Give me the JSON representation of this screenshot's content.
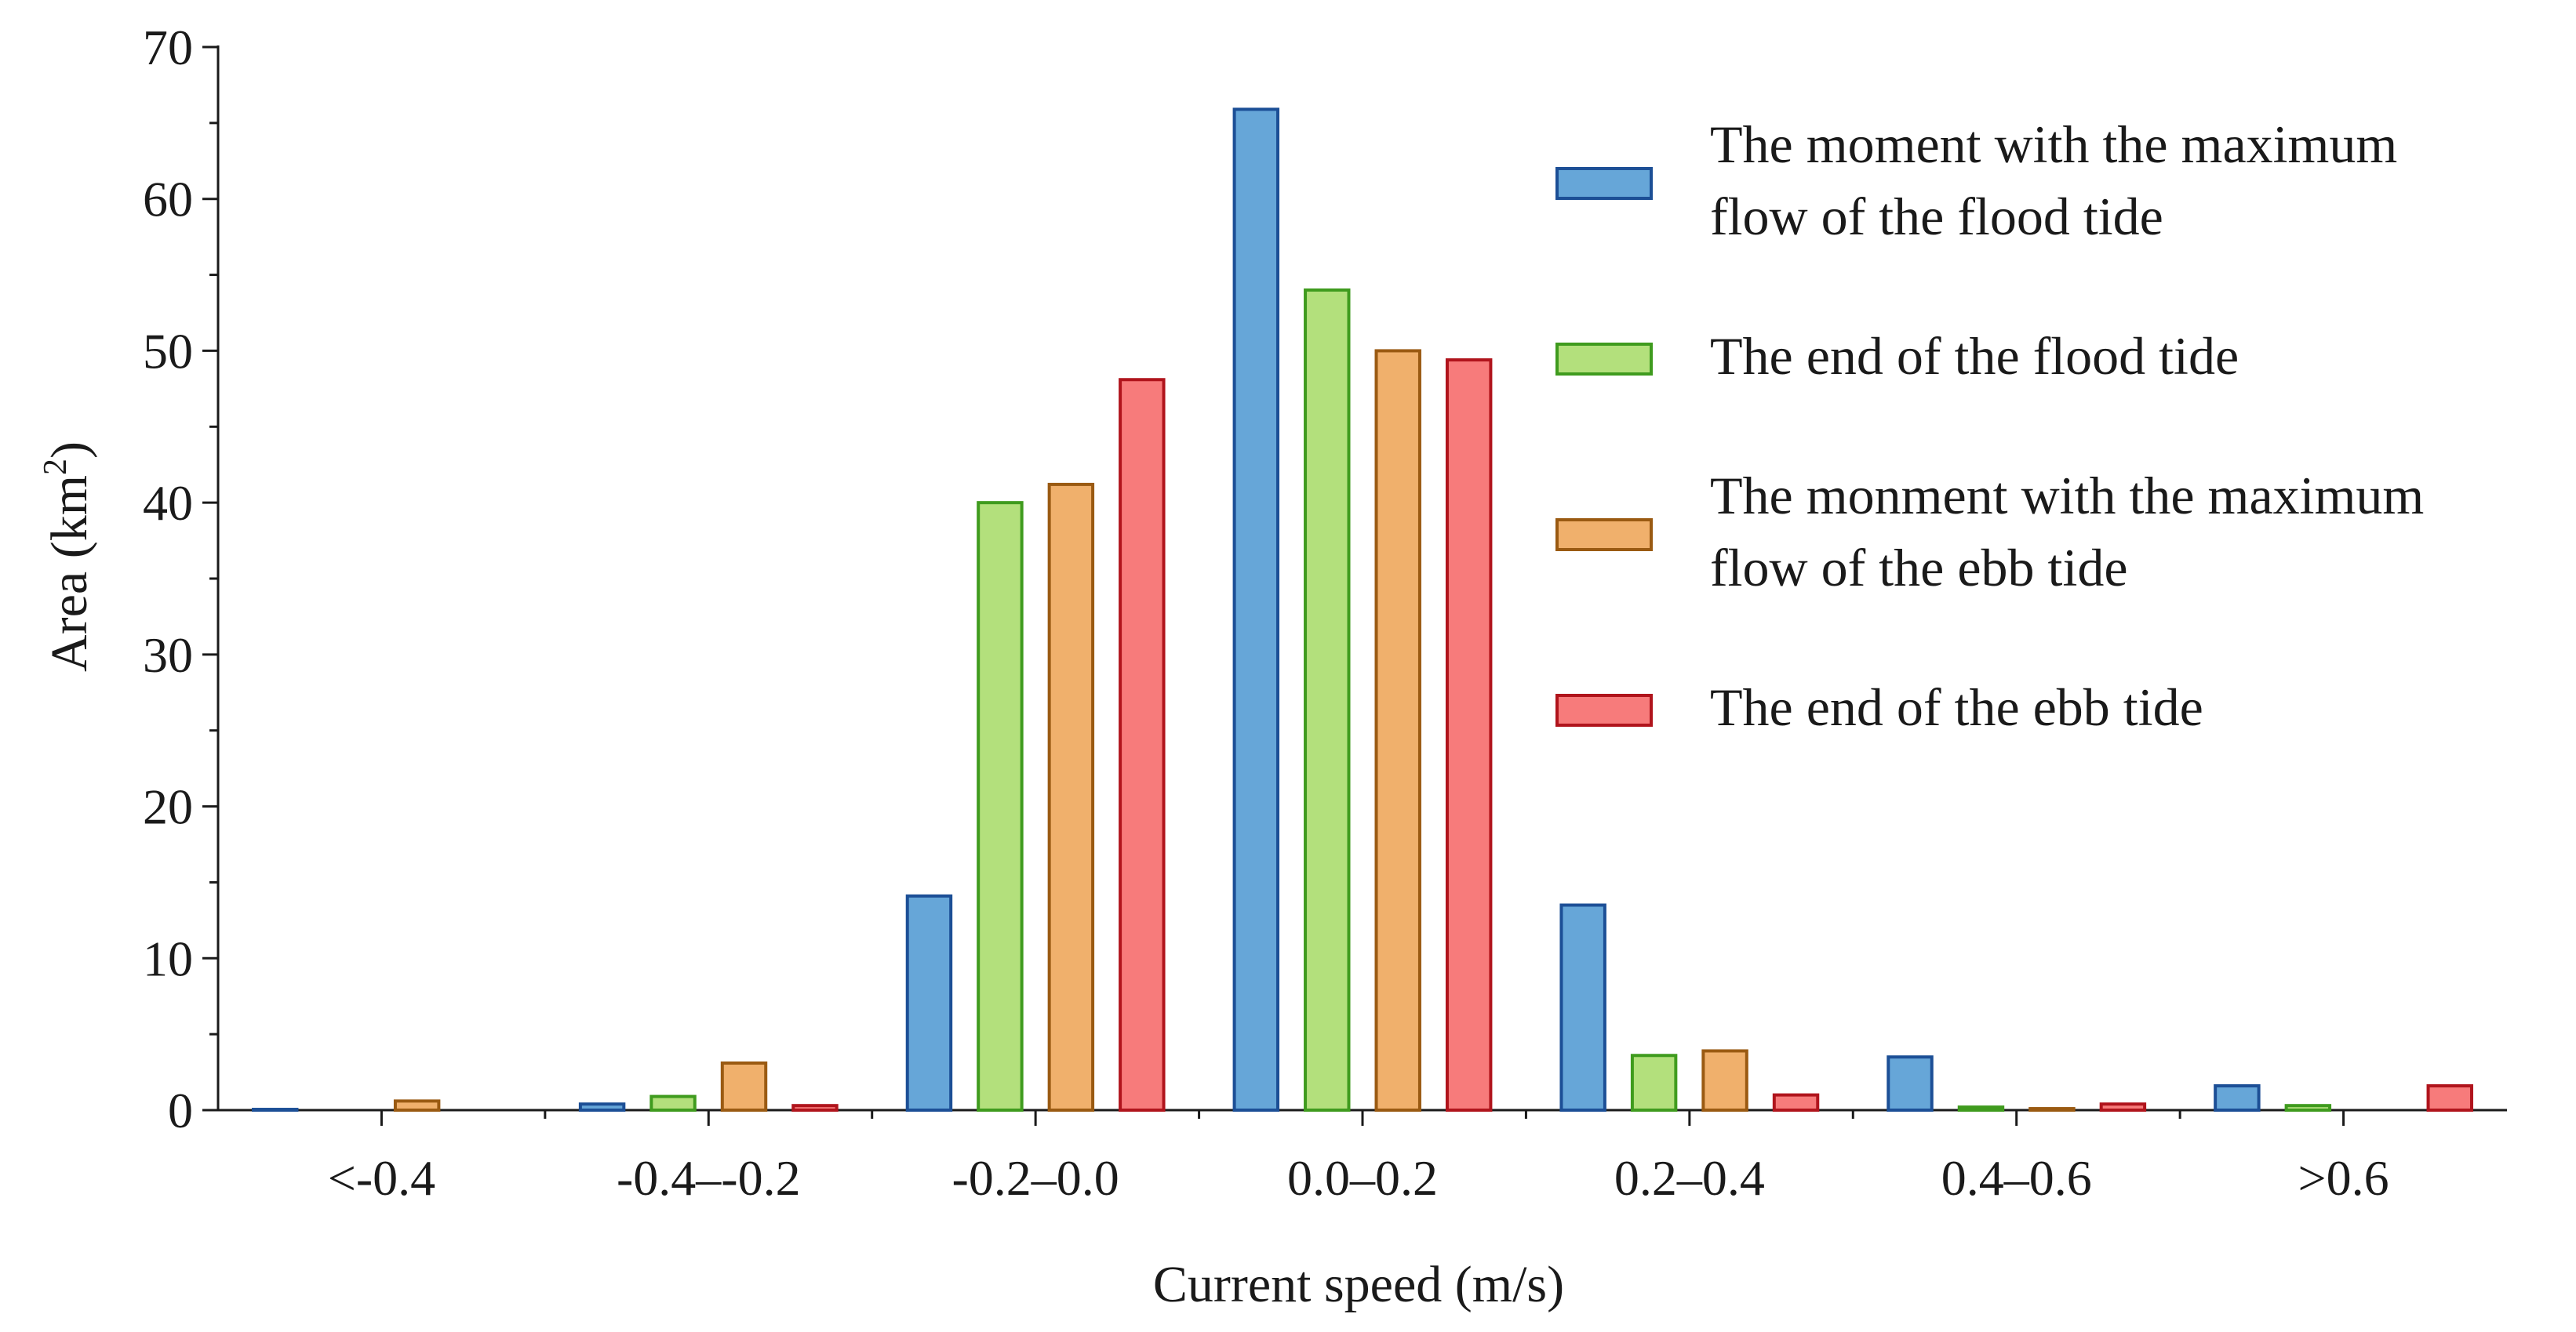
{
  "chart_data": {
    "type": "bar",
    "title": "",
    "xlabel": "Current speed (m/s)",
    "ylabel_main": "Area (km",
    "ylabel_sup": "2",
    "ylabel_close": ")",
    "ylim": [
      0,
      70
    ],
    "yticks": [
      "0",
      "10",
      "20",
      "30",
      "40",
      "50",
      "60",
      "70"
    ],
    "categories": [
      "<-0.4",
      "-0.4–-0.2",
      "-0.2–0.0",
      "0.0–0.2",
      "0.2–0.4",
      "0.4–0.6",
      ">0.6"
    ],
    "legend_position": "top-right",
    "series": [
      {
        "name": "The moment with the maximum flow of the flood tide",
        "legend_lines": [
          "The moment with the maximum",
          "flow of the flood tide"
        ],
        "fill": "#66a6d8",
        "stroke": "#1c4f96",
        "values": [
          0.05,
          0.4,
          14.1,
          65.9,
          13.5,
          3.5,
          1.6
        ]
      },
      {
        "name": "The end of the flood tide",
        "legend_lines": [
          "The end of the flood tide"
        ],
        "fill": "#b3e07c",
        "stroke": "#3f9b1e",
        "values": [
          0,
          0.9,
          40.0,
          54.0,
          3.6,
          0.2,
          0.3
        ]
      },
      {
        "name": "The monment with the maximum flow of the ebb tide",
        "legend_lines": [
          "The monment with the maximum",
          "flow of the ebb tide"
        ],
        "fill": "#f0b06c",
        "stroke": "#9a5a12",
        "values": [
          0.6,
          3.1,
          41.2,
          50.0,
          3.9,
          0.1,
          0
        ]
      },
      {
        "name": "The end of the ebb tide",
        "legend_lines": [
          "The end of the ebb tide"
        ],
        "fill": "#f77b7b",
        "stroke": "#b0141c",
        "values": [
          0,
          0.3,
          48.1,
          49.4,
          1.0,
          0.4,
          1.6
        ]
      }
    ]
  }
}
